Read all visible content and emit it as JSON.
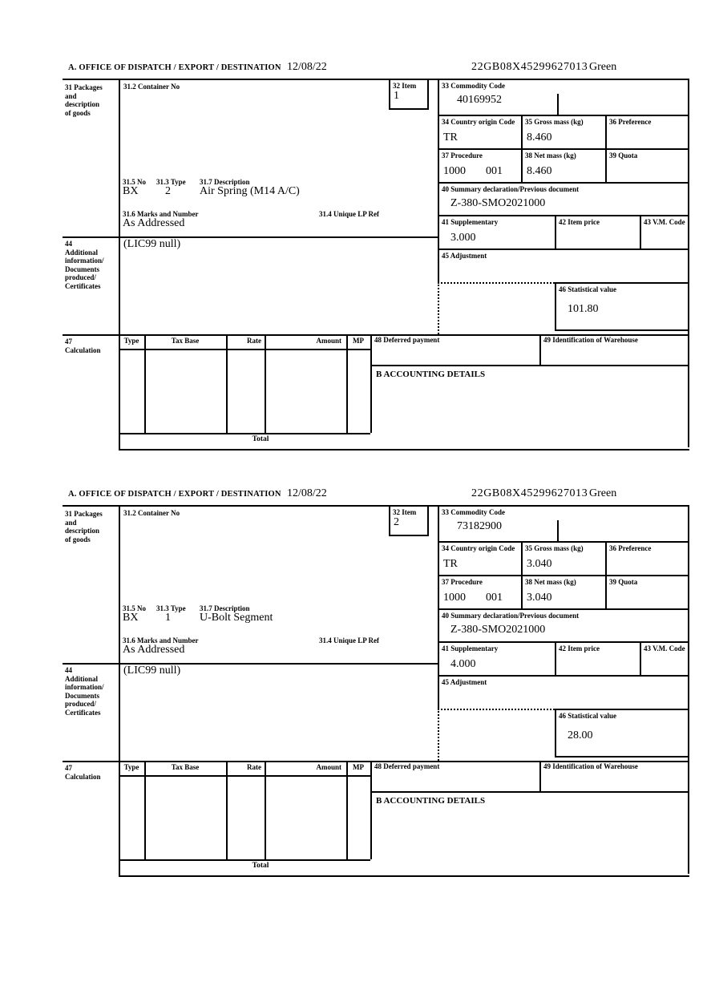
{
  "document": {
    "type_note": "customs entry continuation sheet",
    "labels": {
      "office": "A. OFFICE OF DISPATCH / EXPORT / DESTINATION",
      "box31": "31 Packages\nand\ndescription\nof goods",
      "box31_2": "31.2 Container No",
      "box31_5": "31.5 No",
      "box31_3": "31.3 Type",
      "box31_7": "31.7 Description",
      "box31_6": "31.6 Marks and Number",
      "box31_4": "31.4 Unique LP Ref",
      "box32": "32 Item",
      "box33": "33 Commodity Code",
      "box34": "34 Country origin Code",
      "box35": "35 Gross mass (kg)",
      "box36": "36 Preference",
      "box37": "37 Procedure",
      "box38": "38 Net mass (kg)",
      "box39": "39 Quota",
      "box40": "40 Summary declaration/Previous document",
      "box41": "41 Supplementary",
      "box42": "42 Item price",
      "box43": "43 V.M. Code",
      "box44": "44\nAdditional\ninformation/\nDocuments\nproduced/\nCertificates",
      "box45": "45 Adjustment",
      "box46": "46 Statistical value",
      "box47": "47\nCalculation",
      "box48": "48 Deferred payment",
      "box49": "49 Identification of Warehouse",
      "accounting": "B ACCOUNTING DETAILS",
      "col_type": "Type",
      "col_tax_base": "Tax Base",
      "col_rate": "Rate",
      "col_amount": "Amount",
      "col_mp": "MP",
      "total": "Total"
    },
    "sections": [
      {
        "date": "12/08/22",
        "mrn": "22GB08X45299627013",
        "routing": "Green",
        "item_no": "1",
        "commodity_code": "40169952",
        "country_origin": "TR",
        "gross_mass": "8.460",
        "procedure_main": "1000",
        "procedure_extra": "001",
        "net_mass": "8.460",
        "summary_declaration": "Z-380-SMO2021000",
        "supplementary": "3.000",
        "packages_no": "BX",
        "packages_type": "2",
        "description": "Air Spring (M14 A/C)",
        "marks": "As Addressed",
        "additional_info": "(LIC99 null)",
        "statistical_value": "101.80"
      },
      {
        "date": "12/08/22",
        "mrn": "22GB08X45299627013",
        "routing": "Green",
        "item_no": "2",
        "commodity_code": "73182900",
        "country_origin": "TR",
        "gross_mass": "3.040",
        "procedure_main": "1000",
        "procedure_extra": "001",
        "net_mass": "3.040",
        "summary_declaration": "Z-380-SMO2021000",
        "supplementary": "4.000",
        "packages_no": "BX",
        "packages_type": "1",
        "description": "U-Bolt Segment",
        "marks": "As Addressed",
        "additional_info": "(LIC99 null)",
        "statistical_value": "28.00"
      }
    ]
  }
}
